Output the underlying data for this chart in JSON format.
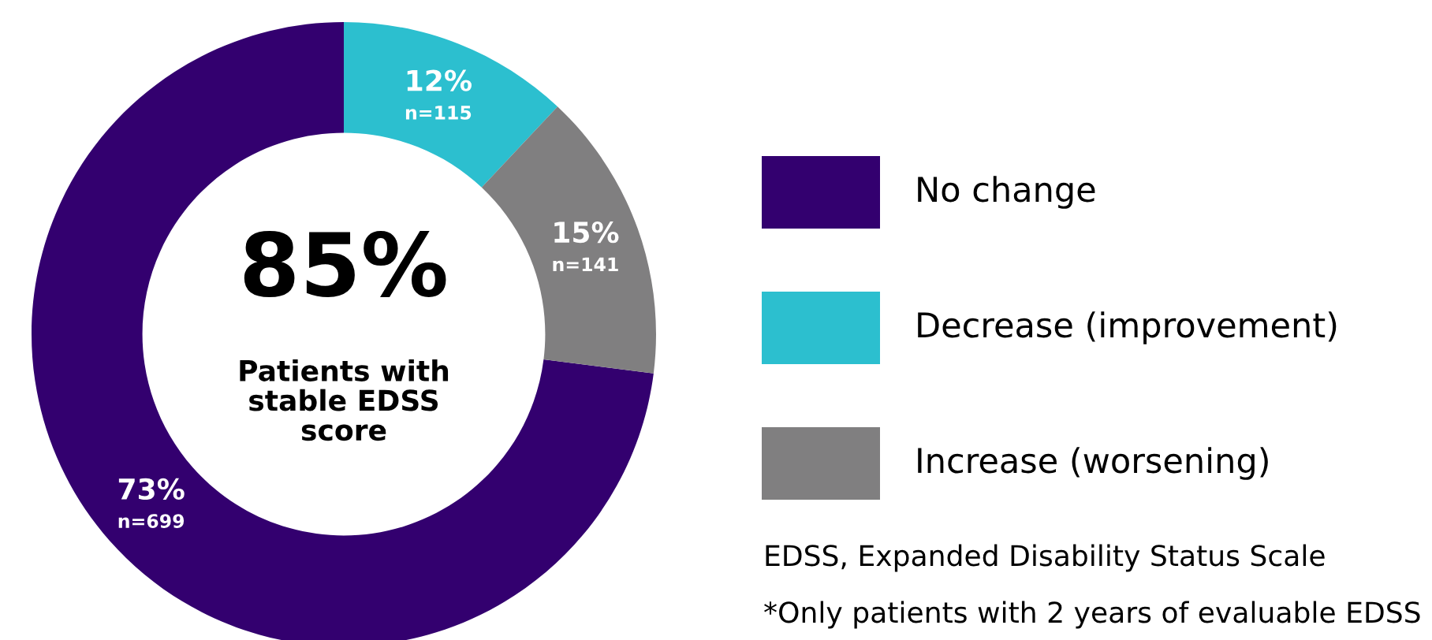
{
  "chart_data": {
    "type": "donut",
    "categories": [
      "No change",
      "Decrease (improvement)",
      "Increase (worsening)"
    ],
    "values": [
      73,
      12,
      15
    ],
    "colors": [
      "#33006f",
      "#2cbfcf",
      "#807f80"
    ],
    "value_labels": [
      "73%\nn=699",
      "12%\nn=115",
      "15%\nn=141"
    ],
    "legend": "right",
    "annotations": [
      "85%",
      "Patients with\nstable EDSS\nscore",
      "EDSS, Expanded Disability Status Scale",
      "*Only patients with 2 years of evaluable EDSS"
    ]
  }
}
